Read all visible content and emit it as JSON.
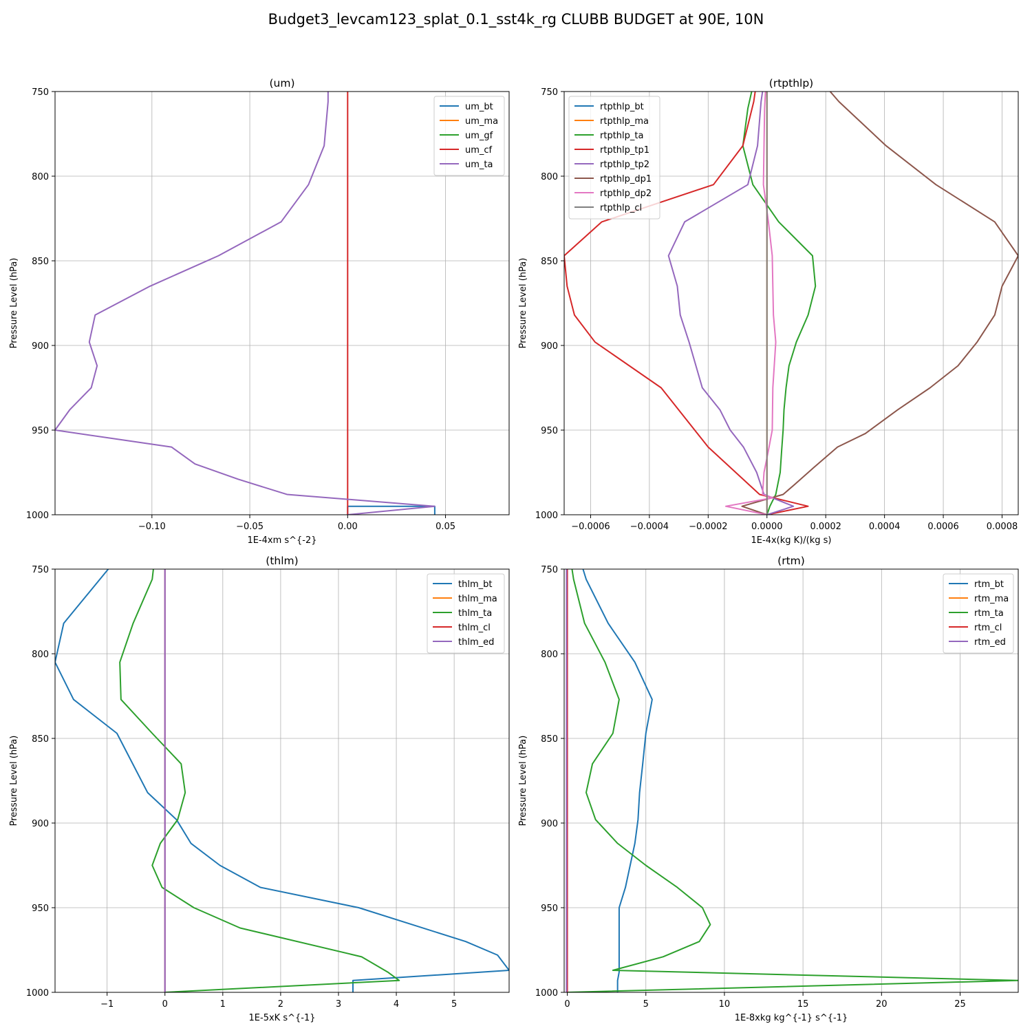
{
  "figure_title": "Budget3_levcam123_splat_0.1_sst4k_rg CLUBB BUDGET at 90E, 10N",
  "chart_data": [
    {
      "id": "um",
      "type": "line",
      "title": "(um)",
      "xlabel": "1E-4xm s^{-2}",
      "ylabel": "Pressure Level (hPa)",
      "xlim": [
        -0.1495,
        0.0825
      ],
      "ylim": [
        1000,
        750
      ],
      "xticks": [
        -0.1,
        -0.05,
        0.0,
        0.05
      ],
      "xticklabels": [
        "−0.10",
        "−0.05",
        "0.00",
        "0.05"
      ],
      "yticks": [
        750,
        800,
        850,
        900,
        950,
        1000
      ],
      "yticklabels": [
        "750",
        "800",
        "850",
        "900",
        "950",
        "1000"
      ],
      "grid": true,
      "legend_position": "upper-right",
      "series": [
        {
          "name": "um_bt",
          "color": "#1f77b4",
          "points": [
            [
              0.0,
              1000
            ],
            [
              0.0,
              995
            ],
            [
              0.0445,
              995
            ],
            [
              0.0445,
              1000
            ]
          ]
        },
        {
          "name": "um_ma",
          "color": "#ff7f0e",
          "points": []
        },
        {
          "name": "um_gf",
          "color": "#2ca02c",
          "points": []
        },
        {
          "name": "um_cf",
          "color": "#d62728",
          "points": [
            [
              0.0,
              750
            ],
            [
              0.0,
              1000
            ]
          ]
        },
        {
          "name": "um_ta",
          "color": "#9467bd",
          "points": [
            [
              -0.01,
              750
            ],
            [
              -0.01,
              756
            ],
            [
              -0.012,
              782
            ],
            [
              -0.02,
              805
            ],
            [
              -0.034,
              827
            ],
            [
              -0.066,
              847
            ],
            [
              -0.101,
              865
            ],
            [
              -0.129,
              882
            ],
            [
              -0.132,
              898
            ],
            [
              -0.128,
              912
            ],
            [
              -0.131,
              925
            ],
            [
              -0.142,
              938
            ],
            [
              -0.1495,
              950
            ],
            [
              -0.09,
              960
            ],
            [
              -0.078,
              970
            ],
            [
              -0.056,
              979
            ],
            [
              -0.031,
              988
            ],
            [
              0.0445,
              995
            ],
            [
              0.0,
              1000
            ]
          ]
        }
      ]
    },
    {
      "id": "rtpthlp",
      "type": "line",
      "title": "(rtpthlp)",
      "xlabel": "1E-4x(kg K)/(kg s)",
      "ylabel": "Pressure Level (hPa)",
      "xlim": [
        -0.00069,
        0.000855
      ],
      "ylim": [
        1000,
        750
      ],
      "xticks": [
        -0.0006,
        -0.0004,
        -0.0002,
        0.0,
        0.0002,
        0.0004,
        0.0006,
        0.0008
      ],
      "xticklabels": [
        "−0.0006",
        "−0.0004",
        "−0.0002",
        "0.0000",
        "0.0002",
        "0.0004",
        "0.0006",
        "0.0008"
      ],
      "yticks": [
        750,
        800,
        850,
        900,
        950,
        1000
      ],
      "yticklabels": [
        "750",
        "800",
        "850",
        "900",
        "950",
        "1000"
      ],
      "grid": true,
      "legend_position": "upper-left",
      "series": [
        {
          "name": "rtpthlp_bt",
          "color": "#1f77b4",
          "points": []
        },
        {
          "name": "rtpthlp_ma",
          "color": "#ff7f0e",
          "points": [
            [
              0.0,
              750
            ],
            [
              0.0,
              1000
            ]
          ]
        },
        {
          "name": "rtpthlp_ta",
          "color": "#2ca02c",
          "points": [
            [
              -5.2e-05,
              750
            ],
            [
              -6.5e-05,
              760
            ],
            [
              -8.2e-05,
              782
            ],
            [
              -4.8e-05,
              805
            ],
            [
              4e-05,
              827
            ],
            [
              0.000155,
              847
            ],
            [
              0.000165,
              865
            ],
            [
              0.00014,
              882
            ],
            [
              0.0001,
              898
            ],
            [
              7.5e-05,
              912
            ],
            [
              6.5e-05,
              925
            ],
            [
              5.8e-05,
              938
            ],
            [
              5.5e-05,
              950
            ],
            [
              5e-05,
              962
            ],
            [
              4.5e-05,
              975
            ],
            [
              3e-05,
              988
            ],
            [
              1e-05,
              995
            ],
            [
              0.0,
              1000
            ]
          ]
        },
        {
          "name": "rtpthlp_tp1",
          "color": "#d62728",
          "points": [
            [
              -4e-05,
              750
            ],
            [
              -4.5e-05,
              756
            ],
            [
              -8.2e-05,
              782
            ],
            [
              -0.000182,
              805
            ],
            [
              -0.000562,
              827
            ],
            [
              -0.00069,
              847
            ],
            [
              -0.00068,
              865
            ],
            [
              -0.000655,
              882
            ],
            [
              -0.000585,
              898
            ],
            [
              -0.00036,
              925
            ],
            [
              -0.0002,
              960
            ],
            [
              -2.5e-05,
              988
            ],
            [
              0.00014,
              995
            ],
            [
              0.0,
              1000
            ]
          ]
        },
        {
          "name": "rtpthlp_tp2",
          "color": "#9467bd",
          "points": [
            [
              -1.5e-05,
              750
            ],
            [
              -2e-05,
              756
            ],
            [
              -3.2e-05,
              782
            ],
            [
              -6.5e-05,
              805
            ],
            [
              -0.00028,
              827
            ],
            [
              -0.000335,
              847
            ],
            [
              -0.000305,
              865
            ],
            [
              -0.000295,
              882
            ],
            [
              -0.000265,
              898
            ],
            [
              -0.00022,
              925
            ],
            [
              -0.00016,
              938
            ],
            [
              -0.000125,
              950
            ],
            [
              -8e-05,
              960
            ],
            [
              -3.5e-05,
              975
            ],
            [
              -1e-05,
              988
            ],
            [
              9e-05,
              995
            ],
            [
              0.0,
              1000
            ]
          ]
        },
        {
          "name": "rtpthlp_dp1",
          "color": "#8c564b",
          "points": [
            [
              0.000215,
              750
            ],
            [
              0.000245,
              756
            ],
            [
              0.000405,
              782
            ],
            [
              0.000575,
              805
            ],
            [
              0.000775,
              827
            ],
            [
              0.000855,
              847
            ],
            [
              0.0008,
              865
            ],
            [
              0.000775,
              882
            ],
            [
              0.000715,
              898
            ],
            [
              0.00065,
              912
            ],
            [
              0.000555,
              925
            ],
            [
              0.000445,
              938
            ],
            [
              0.000335,
              952
            ],
            [
              0.00024,
              960
            ],
            [
              0.00016,
              972
            ],
            [
              9.5e-05,
              982
            ],
            [
              5.5e-05,
              988
            ],
            [
              -8.5e-05,
              995
            ],
            [
              0.0,
              1000
            ]
          ]
        },
        {
          "name": "rtpthlp_dp2",
          "color": "#e377c2",
          "points": [
            [
              -5e-06,
              750
            ],
            [
              -8e-06,
              760
            ],
            [
              -1e-05,
              782
            ],
            [
              -1.2e-05,
              805
            ],
            [
              5e-06,
              827
            ],
            [
              1.8e-05,
              847
            ],
            [
              2e-05,
              865
            ],
            [
              2.2e-05,
              882
            ],
            [
              3e-05,
              898
            ],
            [
              2e-05,
              925
            ],
            [
              1.8e-05,
              950
            ],
            [
              5e-06,
              962
            ],
            [
              -1e-05,
              975
            ],
            [
              -1.5e-05,
              988
            ],
            [
              2e-05,
              990
            ],
            [
              -0.00014,
              995
            ],
            [
              0.0,
              1000
            ]
          ]
        },
        {
          "name": "rtpthlp_cl",
          "color": "#7f7f7f",
          "points": [
            [
              0.0,
              750
            ],
            [
              0.0,
              1000
            ]
          ]
        }
      ]
    },
    {
      "id": "thlm",
      "type": "line",
      "title": "(thlm)",
      "xlabel": "1E-5xK s^{-1}",
      "ylabel": "Pressure Level (hPa)",
      "xlim": [
        -1.9,
        5.95
      ],
      "ylim": [
        1000,
        750
      ],
      "xticks": [
        -1,
        0,
        1,
        2,
        3,
        4,
        5
      ],
      "xticklabels": [
        "−1",
        "0",
        "1",
        "2",
        "3",
        "4",
        "5"
      ],
      "yticks": [
        750,
        800,
        850,
        900,
        950,
        1000
      ],
      "yticklabels": [
        "750",
        "800",
        "850",
        "900",
        "950",
        "1000"
      ],
      "grid": true,
      "legend_position": "upper-right",
      "series": [
        {
          "name": "thlm_bt",
          "color": "#1f77b4",
          "points": [
            [
              -0.98,
              750
            ],
            [
              -1.75,
              782
            ],
            [
              -1.9,
              805
            ],
            [
              -1.58,
              827
            ],
            [
              -0.83,
              847
            ],
            [
              -0.3,
              882
            ],
            [
              0.2,
              898
            ],
            [
              0.45,
              912
            ],
            [
              0.95,
              925
            ],
            [
              1.65,
              938
            ],
            [
              3.35,
              950
            ],
            [
              5.2,
              970
            ],
            [
              5.75,
              978
            ],
            [
              5.95,
              987
            ],
            [
              3.25,
              993
            ],
            [
              3.25,
              1000
            ]
          ]
        },
        {
          "name": "thlm_ma",
          "color": "#ff7f0e",
          "points": []
        },
        {
          "name": "thlm_ta",
          "color": "#2ca02c",
          "points": [
            [
              -0.2,
              750
            ],
            [
              -0.22,
              756
            ],
            [
              -0.55,
              782
            ],
            [
              -0.78,
              805
            ],
            [
              -0.76,
              827
            ],
            [
              -0.22,
              847
            ],
            [
              0.28,
              865
            ],
            [
              0.35,
              882
            ],
            [
              0.22,
              898
            ],
            [
              -0.08,
              912
            ],
            [
              -0.22,
              925
            ],
            [
              -0.05,
              938
            ],
            [
              0.5,
              950
            ],
            [
              1.3,
              962
            ],
            [
              3.4,
              979
            ],
            [
              3.85,
              988
            ],
            [
              4.05,
              993
            ],
            [
              0.0,
              1000
            ]
          ]
        },
        {
          "name": "thlm_cl",
          "color": "#d62728",
          "points": [
            [
              0.0,
              750
            ],
            [
              0.0,
              1000
            ]
          ]
        },
        {
          "name": "thlm_ed",
          "color": "#9467bd",
          "points": [
            [
              0.0,
              750
            ],
            [
              0.0,
              1000
            ]
          ]
        }
      ]
    },
    {
      "id": "rtm",
      "type": "line",
      "title": "(rtm)",
      "xlabel": "1E-8xkg kg^{-1} s^{-1}",
      "ylabel": "Pressure Level (hPa)",
      "xlim": [
        -0.2,
        28.7
      ],
      "ylim": [
        1000,
        750
      ],
      "xticks": [
        0,
        5,
        10,
        15,
        20,
        25
      ],
      "xticklabels": [
        "0",
        "5",
        "10",
        "15",
        "20",
        "25"
      ],
      "yticks": [
        750,
        800,
        850,
        900,
        950,
        1000
      ],
      "yticklabels": [
        "750",
        "800",
        "850",
        "900",
        "950",
        "1000"
      ],
      "grid": true,
      "legend_position": "upper-right",
      "series": [
        {
          "name": "rtm_bt",
          "color": "#1f77b4",
          "points": [
            [
              1.0,
              750
            ],
            [
              1.2,
              756
            ],
            [
              2.6,
              782
            ],
            [
              4.3,
              805
            ],
            [
              5.4,
              827
            ],
            [
              5.0,
              847
            ],
            [
              4.8,
              865
            ],
            [
              4.6,
              882
            ],
            [
              4.5,
              898
            ],
            [
              4.3,
              912
            ],
            [
              4.0,
              925
            ],
            [
              3.7,
              938
            ],
            [
              3.3,
              950
            ],
            [
              3.3,
              960
            ],
            [
              3.3,
              970
            ],
            [
              3.3,
              979
            ],
            [
              3.3,
              988
            ],
            [
              3.2,
              993
            ],
            [
              3.2,
              1000
            ]
          ]
        },
        {
          "name": "rtm_ma",
          "color": "#ff7f0e",
          "points": []
        },
        {
          "name": "rtm_ta",
          "color": "#2ca02c",
          "points": [
            [
              0.3,
              750
            ],
            [
              0.4,
              756
            ],
            [
              1.1,
              782
            ],
            [
              2.4,
              805
            ],
            [
              3.3,
              827
            ],
            [
              2.9,
              847
            ],
            [
              1.6,
              865
            ],
            [
              1.2,
              882
            ],
            [
              1.8,
              898
            ],
            [
              3.2,
              912
            ],
            [
              5.0,
              925
            ],
            [
              7.0,
              938
            ],
            [
              8.6,
              950
            ],
            [
              9.1,
              960
            ],
            [
              8.4,
              970
            ],
            [
              6.1,
              979
            ],
            [
              2.9,
              987
            ],
            [
              28.7,
              993
            ],
            [
              0.0,
              1000
            ]
          ]
        },
        {
          "name": "rtm_cl",
          "color": "#d62728",
          "points": [
            [
              0.0,
              750
            ],
            [
              0.0,
              1000
            ]
          ]
        },
        {
          "name": "rtm_ed",
          "color": "#9467bd",
          "points": [
            [
              -0.05,
              750
            ],
            [
              -0.05,
              1000
            ]
          ]
        }
      ]
    }
  ]
}
